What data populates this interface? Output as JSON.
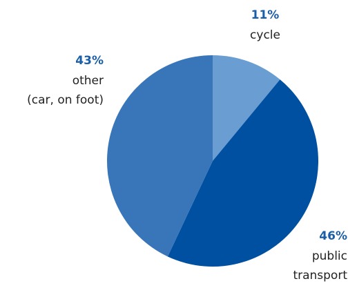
{
  "chart_data": {
    "type": "pie",
    "categories": [
      [
        "cycle"
      ],
      [
        "public",
        "transport"
      ],
      [
        "other",
        "(car, on foot)"
      ]
    ],
    "values": [
      11,
      46,
      43
    ],
    "value_labels": [
      "11%",
      "46%",
      "43%"
    ],
    "colors": [
      "#6a9ed2",
      "#0050a2",
      "#3976b9"
    ]
  }
}
